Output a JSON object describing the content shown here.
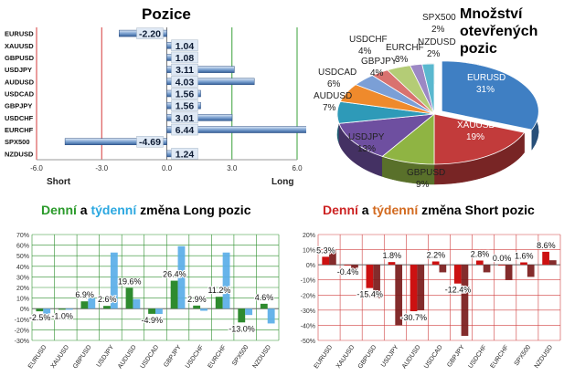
{
  "chart_data": [
    {
      "type": "bar",
      "orientation": "horizontal",
      "title": "Pozice",
      "categories": [
        "EURUSD",
        "XAUUSD",
        "GBPUSD",
        "USDJPY",
        "AUDUSD",
        "USDCAD",
        "GBPJPY",
        "USDCHF",
        "EURCHF",
        "SPX500",
        "NZDUSD"
      ],
      "values": [
        -2.2,
        1.04,
        1.08,
        3.11,
        4.03,
        1.56,
        1.56,
        3.01,
        6.44,
        -4.69,
        1.24
      ],
      "value_labels": [
        "-2.20",
        "1.04",
        "1.08",
        "3.11",
        "4.03",
        "1.56",
        "1.56",
        "3.01",
        "6.44",
        "-4.69",
        "1.24"
      ],
      "xlim": [
        -6,
        6
      ],
      "xticks": [
        "-6.0",
        "-3.0",
        "0.0",
        "3.0",
        "6.0"
      ],
      "short_label": "Short",
      "long_label": "Long"
    },
    {
      "type": "pie",
      "title": "Množství otevřených pozic",
      "labels": [
        "EURUSD",
        "XAUUSD",
        "GBPUSD",
        "USDJPY",
        "AUDUSD",
        "USDCAD",
        "GBPJPY",
        "EURCHF",
        "USDCHF",
        "SPX500",
        "NZDUSD"
      ],
      "values": [
        31,
        19,
        9,
        13,
        7,
        6,
        4,
        3,
        4,
        2,
        2
      ],
      "value_labels": [
        "31%",
        "19%",
        "9%",
        "13%",
        "7%",
        "6%",
        "4%",
        "3%",
        "4%",
        "2%",
        "2%"
      ],
      "colors": [
        "#3f7fc3",
        "#c23b3b",
        "#8fb443",
        "#6e4fa0",
        "#2e9ab8",
        "#ef8a2c",
        "#7b9fd6",
        "#d9726f",
        "#b4cc76",
        "#9c88c4",
        "#5ab8cf"
      ]
    },
    {
      "type": "bar",
      "title_parts": [
        "Denní",
        " a ",
        "týdenní",
        " změna Long pozic"
      ],
      "title_colors": [
        "#2a9a2a",
        "#000000",
        "#2aa7e0",
        "#000000"
      ],
      "categories": [
        "EURUSD",
        "XAUUSD",
        "GBPUSD",
        "USDJPY",
        "AUDUSD",
        "USDCAD",
        "GBPJPY",
        "USDCHF",
        "EURCHF",
        "SPX500",
        "NZDUSD"
      ],
      "series": [
        {
          "values": [
            -2.5,
            -1.0,
            6.9,
            2.6,
            19.6,
            -4.9,
            26.4,
            2.9,
            11.2,
            -13.0,
            4.6
          ],
          "color": "#2e8b2e"
        },
        {
          "values": [
            -5,
            -1,
            10,
            53,
            9,
            -5,
            59,
            -2,
            53,
            -6,
            -14
          ],
          "color": "#5aaee8"
        }
      ],
      "data_labels": [
        "-2.5%",
        "-1.0%",
        "6.9%",
        "2.6%",
        "19.6%",
        "-4.9%",
        "26.4%",
        "2.9%",
        "11.2%",
        "-13.0%",
        "4.6%"
      ],
      "ylim": [
        -30,
        70
      ],
      "yticks": [
        "70%",
        "60%",
        "50%",
        "40%",
        "30%",
        "20%",
        "10%",
        "0%",
        "-10%",
        "-20%",
        "-30%"
      ]
    },
    {
      "type": "bar",
      "title_parts": [
        "Denní",
        " a ",
        "týdenní",
        " změna Short pozic"
      ],
      "title_colors": [
        "#cc2222",
        "#000000",
        "#d2691e",
        "#000000"
      ],
      "categories": [
        "EURUSD",
        "XAUUSD",
        "GBPUSD",
        "USDJPY",
        "AUDUSD",
        "USDCAD",
        "GBPJPY",
        "USDCHF",
        "EURCHF",
        "SPX500",
        "NZDUSD"
      ],
      "series": [
        {
          "values": [
            5.3,
            -0.4,
            -15.4,
            1.8,
            -30.7,
            2.2,
            -12.4,
            2.8,
            0.0,
            1.6,
            8.6
          ],
          "color": "#cc1111"
        },
        {
          "values": [
            10,
            -3,
            -22,
            -40,
            -30,
            -5,
            -47,
            -5,
            -10,
            -8,
            3
          ],
          "color": "#7a1a1a"
        }
      ],
      "data_labels": [
        "5.3%",
        "-0.4%",
        "-15.4%",
        "1.8%",
        "-30.7%",
        "2.2%",
        "-12.4%",
        "2.8%",
        "0.0%",
        "1.6%",
        "8.6%"
      ],
      "ylim": [
        -50,
        20
      ],
      "yticks": [
        "20%",
        "10%",
        "0%",
        "-10%",
        "-20%",
        "-30%",
        "-40%",
        "-50%"
      ]
    }
  ]
}
